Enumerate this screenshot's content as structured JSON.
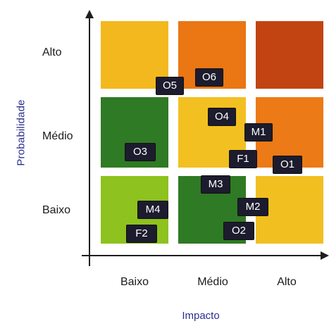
{
  "axes": {
    "y_title": "Probabilidade",
    "x_title": "Impacto",
    "rows": [
      "Alto",
      "Médio",
      "Baixo"
    ],
    "cols": [
      "Baixo",
      "Médio",
      "Alto"
    ]
  },
  "matrix_colors": {
    "alto_baixo": "#f2b81e",
    "alto_medio": "#ea7614",
    "alto_alto": "#c24412",
    "medio_baixo": "#2f7a24",
    "medio_medio": "#f2c021",
    "medio_alto": "#ec7a16",
    "baixo_baixo": "#8ec21e",
    "baixo_medio": "#2f7a24",
    "baixo_alto": "#f2bf21"
  },
  "risks": [
    "O5",
    "O6",
    "O4",
    "M1",
    "O3",
    "F1",
    "O1",
    "M3",
    "M2",
    "M4",
    "F2",
    "O2"
  ]
}
